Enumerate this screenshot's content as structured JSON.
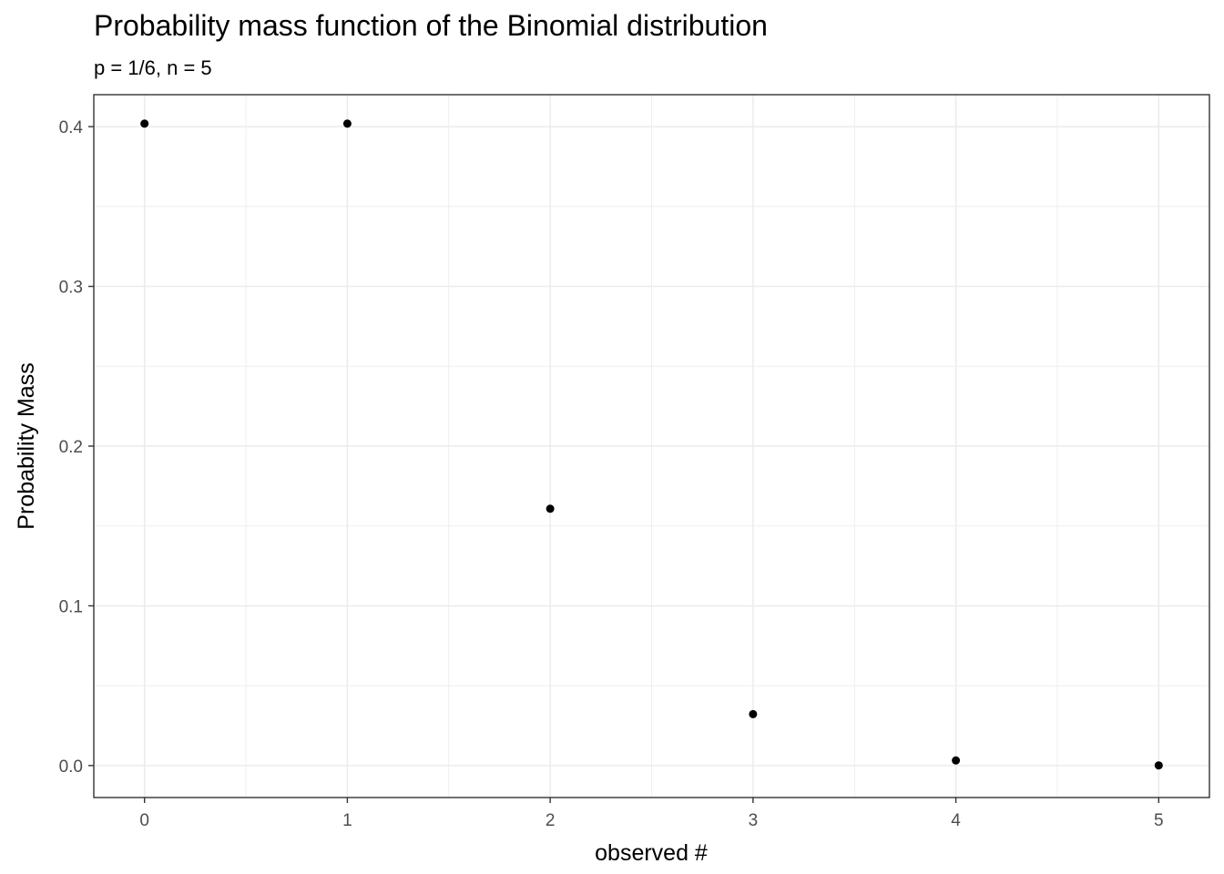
{
  "chart_data": {
    "type": "scatter",
    "title": "Probability mass function of the Binomial distribution",
    "subtitle": "p = 1/6, n = 5",
    "xlabel": "observed #",
    "ylabel": "Probability Mass",
    "x": [
      0,
      1,
      2,
      3,
      4,
      5
    ],
    "y": [
      0.4019,
      0.4019,
      0.1608,
      0.0322,
      0.0032,
      0.0001
    ],
    "xlim": [
      -0.25,
      5.25
    ],
    "ylim": [
      -0.02,
      0.42
    ],
    "x_ticks": [
      "0",
      "1",
      "2",
      "3",
      "4",
      "5"
    ],
    "y_ticks": [
      "0.0",
      "0.1",
      "0.2",
      "0.3",
      "0.4"
    ],
    "grid": true,
    "point_color": "#000000",
    "grid_color": "#ebebeb",
    "panel_border_color": "#333333"
  }
}
